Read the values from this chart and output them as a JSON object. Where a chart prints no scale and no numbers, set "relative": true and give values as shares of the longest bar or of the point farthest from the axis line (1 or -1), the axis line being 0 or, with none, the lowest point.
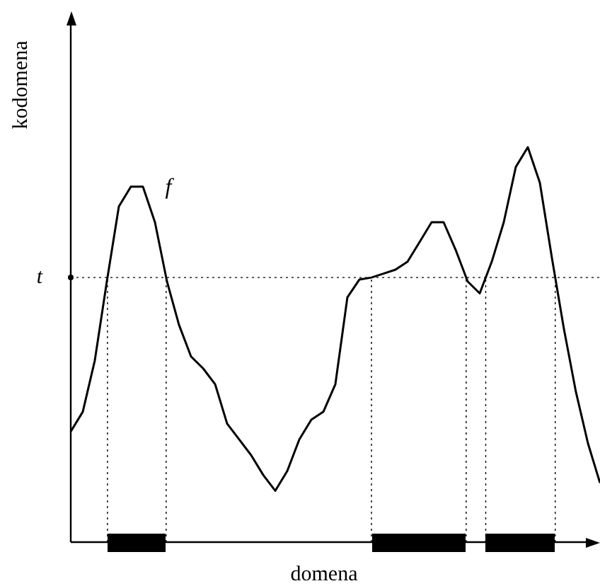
{
  "chart_data": {
    "type": "line",
    "relative": true,
    "xlabel": "domena",
    "ylabel": "kodomena",
    "color": "#000000",
    "marker": "none",
    "line_style": "solid",
    "legend": false,
    "categories": [
      null,
      null,
      null,
      null,
      null,
      null,
      null,
      null,
      null,
      null,
      null,
      null,
      null,
      null,
      null,
      null,
      null,
      null,
      null,
      null,
      null,
      null,
      null,
      null,
      null,
      null,
      null,
      null,
      null,
      null,
      null,
      null,
      null,
      null,
      null,
      null,
      null,
      null,
      null,
      null,
      null,
      null,
      null,
      null,
      null
    ],
    "values": [
      0.28,
      0.33,
      0.46,
      0.66,
      0.85,
      0.9,
      0.9,
      0.81,
      0.66,
      0.55,
      0.47,
      0.44,
      0.4,
      0.3,
      0.26,
      0.22,
      0.17,
      0.13,
      0.18,
      0.26,
      0.31,
      0.33,
      0.4,
      0.62,
      0.665,
      0.67,
      0.68,
      0.69,
      0.71,
      0.76,
      0.81,
      0.81,
      0.74,
      0.66,
      0.63,
      0.71,
      0.81,
      0.95,
      1,
      0.91,
      0.72,
      0.54,
      0.38,
      0.25,
      0.15
    ],
    "ref_lines": [
      {
        "axis": "y",
        "value": 0.67,
        "label": "t",
        "color": "#000000",
        "line_style": "dotted"
      }
    ],
    "annotations": [
      "f"
    ]
  }
}
